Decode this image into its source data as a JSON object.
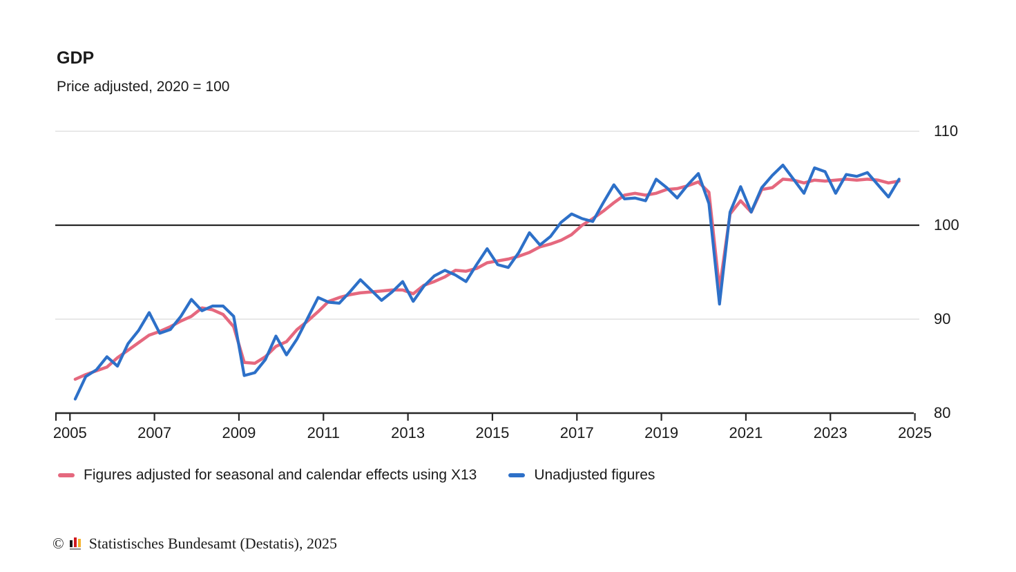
{
  "page": {
    "background": "#ffffff"
  },
  "chart_data": {
    "type": "line",
    "title": "GDP",
    "subtitle": "Price adjusted, 2020 = 100",
    "xlabel": "",
    "ylabel": "",
    "ylim": [
      80,
      110
    ],
    "y_ticks": [
      80,
      90,
      100,
      110
    ],
    "x_ticks": [
      2005,
      2007,
      2009,
      2011,
      2013,
      2015,
      2017,
      2019,
      2021,
      2023,
      2025
    ],
    "reference_line_y": 100,
    "grid": "horizontal",
    "legend_position": "bottom",
    "frequency": "quarterly",
    "period_start": "2005 Q1",
    "period_end": "2024 Q3",
    "colors": {
      "adjusted": "#e5687e",
      "unadjusted": "#2d70c8",
      "gridline": "#d9d9d9",
      "axis": "#262626",
      "reference_line": "#262626"
    },
    "series": [
      {
        "name": "Figures adjusted for seasonal and calendar effects using X13",
        "color": "#e5687e",
        "values": [
          83.6,
          84.1,
          84.5,
          84.9,
          85.9,
          86.7,
          87.5,
          88.3,
          88.7,
          89.2,
          89.8,
          90.3,
          91.2,
          91.0,
          90.5,
          89.2,
          85.4,
          85.3,
          86.0,
          87.1,
          87.6,
          88.9,
          89.8,
          90.8,
          91.9,
          92.3,
          92.6,
          92.8,
          92.9,
          93.0,
          93.1,
          93.1,
          92.7,
          93.6,
          94.0,
          94.5,
          95.2,
          95.1,
          95.4,
          96.0,
          96.2,
          96.4,
          96.7,
          97.1,
          97.7,
          98.0,
          98.4,
          99.0,
          100.0,
          100.7,
          101.5,
          102.4,
          103.2,
          103.4,
          103.2,
          103.4,
          103.8,
          103.9,
          104.2,
          104.6,
          103.5,
          93.2,
          101.2,
          102.6,
          101.4,
          103.8,
          104.0,
          104.9,
          104.8,
          104.5,
          104.8,
          104.7,
          104.8,
          104.9,
          104.8,
          104.9,
          104.8,
          104.5,
          104.7
        ]
      },
      {
        "name": "Unadjusted figures",
        "color": "#2d70c8",
        "values": [
          81.5,
          83.9,
          84.6,
          86.0,
          85.0,
          87.4,
          88.8,
          90.7,
          88.5,
          88.9,
          90.3,
          92.1,
          90.9,
          91.4,
          91.4,
          90.3,
          84.0,
          84.3,
          85.7,
          88.2,
          86.2,
          87.9,
          90.1,
          92.3,
          91.8,
          91.7,
          92.9,
          94.2,
          93.1,
          92.0,
          92.9,
          94.0,
          91.9,
          93.5,
          94.6,
          95.2,
          94.7,
          94.0,
          95.8,
          97.5,
          95.8,
          95.5,
          97.1,
          99.2,
          97.9,
          98.8,
          100.3,
          101.2,
          100.7,
          100.4,
          102.4,
          104.3,
          102.8,
          102.9,
          102.6,
          104.9,
          104.0,
          102.9,
          104.3,
          105.5,
          102.3,
          91.6,
          101.4,
          104.1,
          101.4,
          104.0,
          105.3,
          106.4,
          104.9,
          103.4,
          106.1,
          105.7,
          103.4,
          105.4,
          105.2,
          105.6,
          104.3,
          103.0,
          104.9
        ]
      }
    ]
  },
  "footer": {
    "copyright": "©",
    "text": "Statistisches Bundesamt (Destatis), 2025",
    "logo_colors": {
      "bar1": "#1a1a1a",
      "bar2": "#d01920",
      "bar3": "#f5b229",
      "base": "#9a9a9a"
    }
  }
}
